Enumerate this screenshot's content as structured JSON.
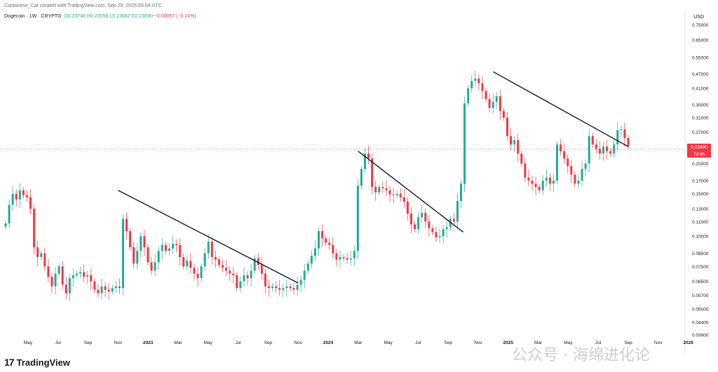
{
  "header": {
    "credit": "Cantonese_Cat created with TradingView.com, Sep 29, 2025 00:04 UTC",
    "symbol": "Dogecoin · 1W · CRYPTO",
    "ohlc_open": "O0.23748",
    "ohlc_high": "H0.23756",
    "ohlc_low": "L0.23682",
    "ohlc_close": "C0.23690",
    "change": "−0.00057 (−0.24%)"
  },
  "currency": "USD",
  "brand": {
    "logo": "17",
    "name": "TradingView"
  },
  "watermark": "公众号 · 海绵进化论",
  "price_tag": {
    "price": "0.23690",
    "countdown": "7d 0h"
  },
  "colors": {
    "up": "#22ab94",
    "down": "#f23645",
    "trendline": "#131722",
    "last_price_line": "#f23645"
  },
  "chart_data": {
    "type": "candlestick",
    "title": "",
    "scale": "log",
    "grid": false,
    "ylim": [
      0.037,
      0.8
    ],
    "y_ticks": [
      "0.75000",
      "0.65000",
      "0.55000",
      "0.47000",
      "0.41000",
      "0.35000",
      "0.31000",
      "0.27000",
      "0.23690",
      "0.20000",
      "0.17000",
      "0.15000",
      "0.13000",
      "0.11500",
      "0.10000",
      "0.08500",
      "0.07500",
      "0.06500",
      "0.05700",
      "0.05000",
      "0.04400",
      "0.03900"
    ],
    "x_ticks": [
      "May",
      "Jul",
      "Sep",
      "Nov",
      "2023",
      "Mar",
      "May",
      "Jul",
      "Sep",
      "Nov",
      "2024",
      "Mar",
      "May",
      "Jul",
      "Sep",
      "Nov",
      "2025",
      "Mar",
      "May",
      "Jul",
      "Sep",
      "Nov",
      "2026"
    ],
    "last_price": 0.2369,
    "close_series": [
      0.113,
      0.135,
      0.15,
      0.142,
      0.155,
      0.148,
      0.145,
      0.13,
      0.09,
      0.082,
      0.085,
      0.075,
      0.068,
      0.062,
      0.07,
      0.075,
      0.063,
      0.058,
      0.067,
      0.069,
      0.07,
      0.071,
      0.068,
      0.069,
      0.065,
      0.06,
      0.058,
      0.062,
      0.06,
      0.059,
      0.061,
      0.062,
      0.061,
      0.118,
      0.105,
      0.09,
      0.077,
      0.087,
      0.1,
      0.09,
      0.078,
      0.072,
      0.078,
      0.087,
      0.092,
      0.087,
      0.089,
      0.093,
      0.092,
      0.082,
      0.075,
      0.079,
      0.074,
      0.07,
      0.067,
      0.075,
      0.085,
      0.095,
      0.082,
      0.08,
      0.076,
      0.074,
      0.072,
      0.07,
      0.069,
      0.061,
      0.065,
      0.069,
      0.067,
      0.072,
      0.081,
      0.076,
      0.07,
      0.062,
      0.061,
      0.062,
      0.061,
      0.06,
      0.061,
      0.062,
      0.061,
      0.06,
      0.063,
      0.066,
      0.072,
      0.077,
      0.083,
      0.089,
      0.105,
      0.098,
      0.094,
      0.092,
      0.085,
      0.08,
      0.082,
      0.081,
      0.08,
      0.081,
      0.087,
      0.162,
      0.19,
      0.22,
      0.21,
      0.16,
      0.152,
      0.16,
      0.158,
      0.155,
      0.149,
      0.148,
      0.15,
      0.145,
      0.139,
      0.124,
      0.112,
      0.107,
      0.12,
      0.125,
      0.115,
      0.108,
      0.104,
      0.099,
      0.1,
      0.107,
      0.109,
      0.118,
      0.115,
      0.14,
      0.165,
      0.355,
      0.41,
      0.44,
      0.45,
      0.43,
      0.4,
      0.37,
      0.34,
      0.36,
      0.38,
      0.33,
      0.31,
      0.26,
      0.24,
      0.25,
      0.22,
      0.2,
      0.175,
      0.17,
      0.165,
      0.16,
      0.155,
      0.17,
      0.175,
      0.165,
      0.17,
      0.24,
      0.225,
      0.21,
      0.195,
      0.18,
      0.165,
      0.17,
      0.19,
      0.2,
      0.26,
      0.24,
      0.23,
      0.22,
      0.235,
      0.225,
      0.22,
      0.24,
      0.275,
      0.277,
      0.255,
      0.2369
    ],
    "trendlines": [
      {
        "from": [
          "Nov 2022",
          0.155
        ],
        "to": [
          "Nov 2023",
          0.064
        ]
      },
      {
        "from": [
          "Mar 2024",
          0.225
        ],
        "to": [
          "Oct 2024",
          0.104
        ]
      },
      {
        "from": [
          "Dec 2024",
          0.48
        ],
        "to": [
          "Sep 2025",
          0.235
        ]
      }
    ]
  }
}
